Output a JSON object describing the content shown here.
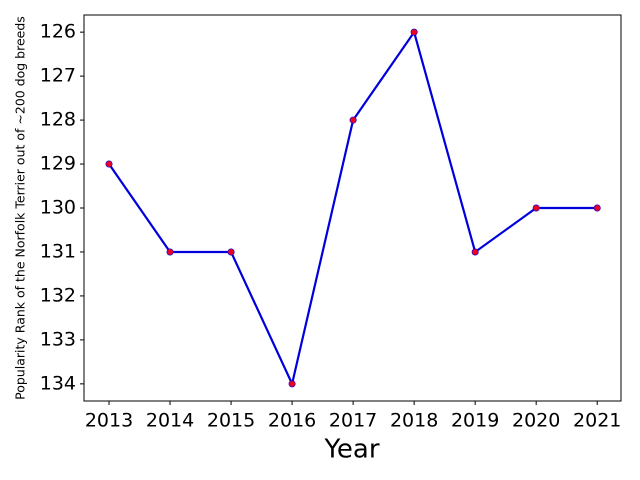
{
  "chart_data": {
    "type": "line",
    "xlabel": "Year",
    "ylabel": "Popularity Rank of the Norfolk Terrier out of ~200 dog breeds",
    "x": [
      2013,
      2014,
      2015,
      2016,
      2017,
      2018,
      2019,
      2020,
      2021
    ],
    "series": [
      {
        "color": "#0000dd",
        "marker_color": "#ee0022",
        "values": [
          129,
          131,
          131,
          134,
          128,
          126,
          131,
          130,
          130
        ]
      }
    ],
    "xlim": [
      2012.59,
      2021.39
    ],
    "xticks": [
      2013,
      2014,
      2015,
      2016,
      2017,
      2018,
      2019,
      2020,
      2021
    ],
    "ylim": [
      134.39,
      125.61
    ],
    "yticks": [
      126,
      127,
      128,
      129,
      130,
      131,
      132,
      133,
      134
    ],
    "grid": false
  }
}
